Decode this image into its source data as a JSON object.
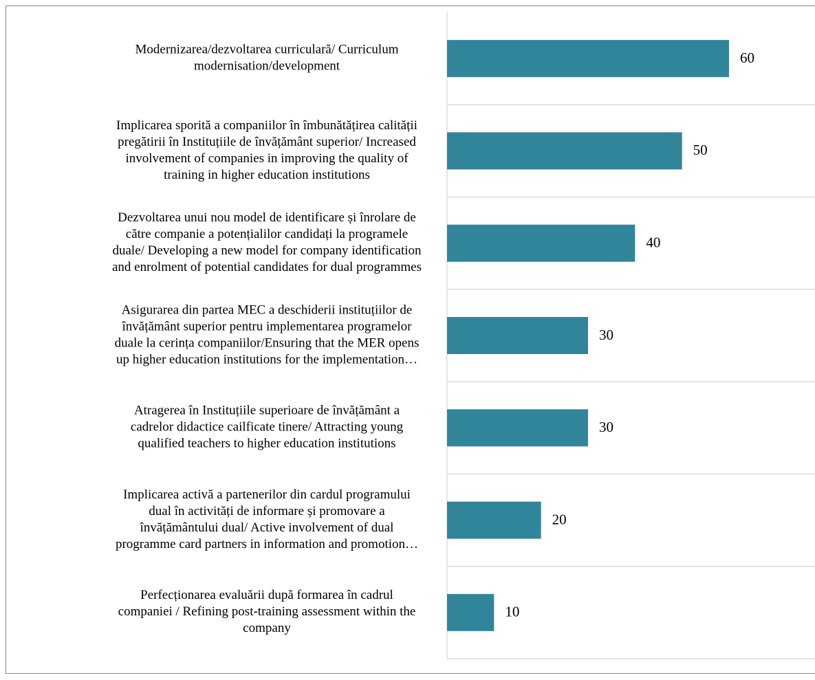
{
  "chart_data": {
    "type": "bar",
    "orientation": "horizontal",
    "color": "#31859b",
    "categories": [
      [
        "Modernizarea/dezvoltarea curriculară/ Curriculum",
        "modernisation/development"
      ],
      [
        "Implicarea sporită a companiilor în îmbunătățirea calității",
        "pregătirii în Instituțiile de învățământ superior/ Increased",
        "involvement of companies in improving the quality of",
        "training in higher education institutions"
      ],
      [
        "Dezvoltarea unui nou model de identificare și înrolare de",
        "către companie a potențialilor candidați la programele",
        "duale/ Developing a new model for company identification",
        "and enrolment of potential candidates for dual programmes"
      ],
      [
        "Asigurarea din partea MEC a deschiderii instituțiilor de",
        "învățământ superior pentru implementarea programelor",
        "duale la cerința companiilor/Ensuring that the MER opens",
        "up higher education institutions for the implementation…"
      ],
      [
        "Atragerea în Instituțiile superioare de învățământ a",
        "cadrelor didactice cailficate tinere/ Attracting young",
        "qualified teachers to higher education institutions"
      ],
      [
        "Implicarea activă a partenerilor din cardul programului",
        "dual în activități de informare și promovare a",
        "învățământului dual/ Active involvement of dual",
        "programme card partners in information and promotion…"
      ],
      [
        "Perfecționarea evaluării după formarea în cadrul",
        "companiei / Refining post-training assessment within the",
        "company"
      ]
    ],
    "values": [
      60,
      50,
      40,
      30,
      30,
      20,
      10
    ],
    "xlim": [
      0,
      78
    ]
  }
}
